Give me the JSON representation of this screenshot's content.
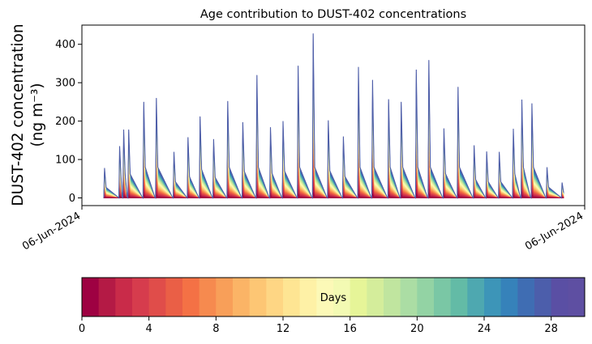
{
  "chart_data": [
    {
      "type": "area",
      "title": "Age contribution to DUST-402 concentrations",
      "ylabel_line1": "DUST-402 concentration",
      "ylabel_line2": "(ng m⁻³)",
      "xlabel": "",
      "ylim": [
        -20,
        450
      ],
      "yticks": [
        0,
        100,
        200,
        300,
        400
      ],
      "xtick_labels": [
        "06-Jun-2024",
        "06-Jun-2024"
      ],
      "grid": false,
      "description_of_series": "Stacked areas by particle age (days 0-30), total concentration envelope over time",
      "envelope": {
        "x_fraction_range": [
          0.045,
          0.955
        ],
        "peaks": [
          {
            "t": 0.045,
            "v": 78
          },
          {
            "t": 0.075,
            "v": 135
          },
          {
            "t": 0.083,
            "v": 178
          },
          {
            "t": 0.093,
            "v": 178
          },
          {
            "t": 0.123,
            "v": 250
          },
          {
            "t": 0.148,
            "v": 260
          },
          {
            "t": 0.183,
            "v": 120
          },
          {
            "t": 0.211,
            "v": 158
          },
          {
            "t": 0.235,
            "v": 212
          },
          {
            "t": 0.262,
            "v": 153
          },
          {
            "t": 0.29,
            "v": 252
          },
          {
            "t": 0.32,
            "v": 197
          },
          {
            "t": 0.348,
            "v": 320
          },
          {
            "t": 0.375,
            "v": 184
          },
          {
            "t": 0.4,
            "v": 200
          },
          {
            "t": 0.43,
            "v": 344
          },
          {
            "t": 0.46,
            "v": 428
          },
          {
            "t": 0.49,
            "v": 202
          },
          {
            "t": 0.52,
            "v": 160
          },
          {
            "t": 0.55,
            "v": 341
          },
          {
            "t": 0.578,
            "v": 307
          },
          {
            "t": 0.61,
            "v": 257
          },
          {
            "t": 0.635,
            "v": 250
          },
          {
            "t": 0.665,
            "v": 334
          },
          {
            "t": 0.69,
            "v": 359
          },
          {
            "t": 0.72,
            "v": 181
          },
          {
            "t": 0.748,
            "v": 289
          },
          {
            "t": 0.78,
            "v": 137
          },
          {
            "t": 0.805,
            "v": 121
          },
          {
            "t": 0.83,
            "v": 120
          },
          {
            "t": 0.858,
            "v": 180
          },
          {
            "t": 0.875,
            "v": 256
          },
          {
            "t": 0.895,
            "v": 246
          },
          {
            "t": 0.925,
            "v": 80
          },
          {
            "t": 0.955,
            "v": 40
          }
        ]
      }
    },
    {
      "type": "colorbar",
      "label": "Days",
      "range": [
        0,
        30
      ],
      "ticks": [
        0,
        4,
        8,
        12,
        16,
        20,
        24,
        28
      ],
      "tick_labels": [
        "0",
        "4",
        "8",
        "12",
        "16",
        "20",
        "24",
        "28"
      ],
      "n_segments": 30,
      "colors": [
        "#9e0142",
        "#b41a45",
        "#c92b49",
        "#d63c4d",
        "#e04d4a",
        "#ea5f46",
        "#f47145",
        "#f68a4f",
        "#f89f59",
        "#fbb466",
        "#fdc674",
        "#fed684",
        "#fee593",
        "#fef1a6",
        "#fcf9b7",
        "#f3fab3",
        "#e6f598",
        "#d4ed9b",
        "#c0e59f",
        "#abdda4",
        "#93d3a4",
        "#7ac7a5",
        "#63bba6",
        "#4ea8b0",
        "#3d95b8",
        "#3682ba",
        "#3f6db3",
        "#4c5eab",
        "#5a4fa4",
        "#5e4fa2"
      ]
    }
  ]
}
